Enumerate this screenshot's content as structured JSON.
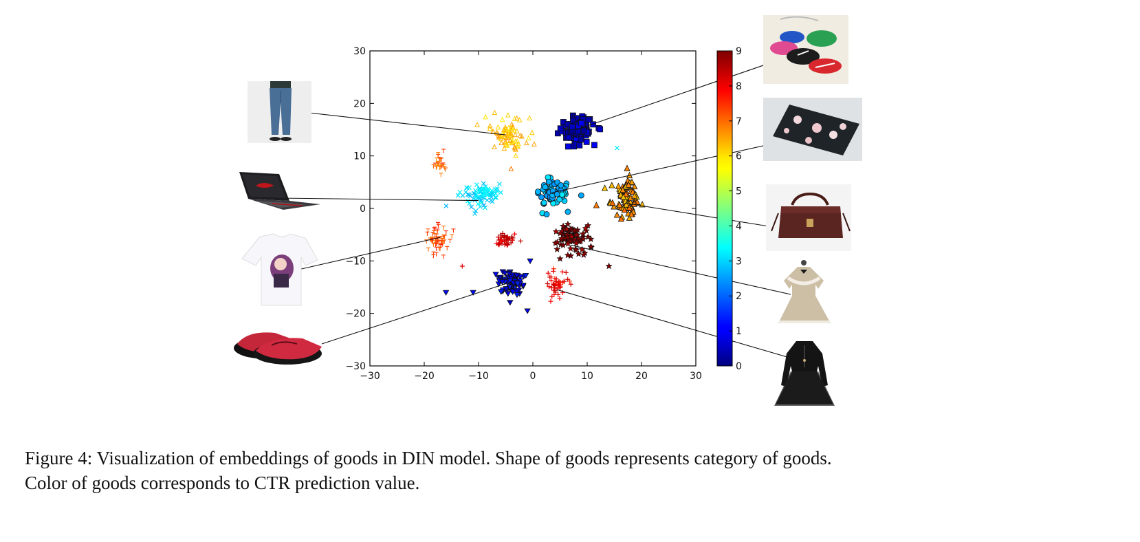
{
  "caption": {
    "line1": "Figure 4: Visualization of embeddings of goods in DIN model. Shape of goods represents category of goods.",
    "line2": "Color of goods corresponds to CTR prediction value."
  },
  "chart_data": {
    "type": "scatter",
    "title": "",
    "xlabel": "",
    "ylabel": "",
    "xlim": [
      -30,
      30
    ],
    "ylim": [
      -30,
      30
    ],
    "xticks": [
      -30,
      -20,
      -10,
      0,
      10,
      20,
      30
    ],
    "yticks": [
      -30,
      -20,
      -10,
      0,
      10,
      20,
      30
    ],
    "grid": false,
    "colorbar": {
      "min": 0,
      "max": 9,
      "ticks": [
        0,
        1,
        2,
        3,
        4,
        5,
        6,
        7,
        8,
        9
      ],
      "colormap": "jet"
    },
    "clusters": [
      {
        "marker": "square",
        "center": [
          8,
          15
        ],
        "spread": [
          3,
          2.4
        ],
        "ctr": 0.6,
        "n": 90,
        "outline": true
      },
      {
        "marker": "triangle-up-outline",
        "center": [
          -4.5,
          14
        ],
        "spread": [
          3,
          3
        ],
        "ctr": 6.2,
        "n": 80,
        "outline": false
      },
      {
        "marker": "triangle-down-outline",
        "center": [
          -17,
          8.5
        ],
        "spread": [
          1,
          1.6
        ],
        "ctr": 7,
        "n": 25,
        "outline": false
      },
      {
        "marker": "cross",
        "center": [
          -10,
          2.5
        ],
        "spread": [
          3.2,
          2.4
        ],
        "ctr": 3.1,
        "n": 80,
        "outline": false
      },
      {
        "marker": "circle",
        "center": [
          3.5,
          3
        ],
        "spread": [
          3,
          2.5
        ],
        "ctr": 2.8,
        "n": 70,
        "outline": true
      },
      {
        "marker": "triangle-up",
        "center": [
          17,
          2
        ],
        "spread": [
          2.4,
          3.2
        ],
        "ctr": 6.5,
        "n": 90,
        "outline": true
      },
      {
        "marker": "triangle-down-outline",
        "center": [
          -18,
          -6
        ],
        "spread": [
          2.4,
          2.8
        ],
        "ctr": 7.2,
        "n": 60,
        "outline": false
      },
      {
        "marker": "plus",
        "center": [
          -5,
          -6
        ],
        "spread": [
          1.8,
          1.3
        ],
        "ctr": 8.3,
        "n": 40,
        "outline": false
      },
      {
        "marker": "star",
        "center": [
          7,
          -5.5
        ],
        "spread": [
          3.2,
          2.2
        ],
        "ctr": 9,
        "n": 80,
        "outline": true
      },
      {
        "marker": "triangle-down",
        "center": [
          -4,
          -14
        ],
        "spread": [
          2.3,
          2.2
        ],
        "ctr": 1,
        "n": 80,
        "outline": true
      },
      {
        "marker": "plus",
        "center": [
          4.5,
          -14.5
        ],
        "spread": [
          2,
          2.4
        ],
        "ctr": 8,
        "n": 45,
        "outline": false
      }
    ],
    "outliers": [
      {
        "marker": "cross",
        "x": 15.5,
        "y": 11.5,
        "ctr": 3.2
      },
      {
        "marker": "triangle-down",
        "x": -16,
        "y": -16,
        "ctr": 1.2
      },
      {
        "marker": "triangle-down",
        "x": -11,
        "y": -16,
        "ctr": 1.2
      },
      {
        "marker": "triangle-down",
        "x": -1,
        "y": -19.5,
        "ctr": 1
      },
      {
        "marker": "triangle-down",
        "x": -0.5,
        "y": -10,
        "ctr": 1.2
      },
      {
        "marker": "star",
        "x": 14,
        "y": -11,
        "ctr": 9
      },
      {
        "marker": "plus",
        "x": -13,
        "y": -11,
        "ctr": 8.2
      },
      {
        "marker": "triangle-up-outline",
        "x": -4,
        "y": 7.5,
        "ctr": 6.8
      }
    ],
    "product_images": [
      {
        "name": "jeans-thumbnail",
        "points_to": [
          -5,
          14
        ]
      },
      {
        "name": "laptop-thumbnail",
        "points_to": [
          -10,
          1.5
        ]
      },
      {
        "name": "tshirt-thumbnail",
        "points_to": [
          -17,
          -5.5
        ]
      },
      {
        "name": "slippers-thumbnail",
        "points_to": [
          -4,
          -14
        ]
      },
      {
        "name": "sneakers-thumbnail",
        "points_to": [
          8,
          15
        ]
      },
      {
        "name": "phone-case-thumbnail",
        "points_to": [
          3.5,
          3
        ]
      },
      {
        "name": "handbag-thumbnail",
        "points_to": [
          17,
          1
        ]
      },
      {
        "name": "beige-coat-thumbnail",
        "points_to": [
          7,
          -7
        ]
      },
      {
        "name": "black-dress-thumbnail",
        "points_to": [
          4.5,
          -15.5
        ]
      }
    ]
  }
}
